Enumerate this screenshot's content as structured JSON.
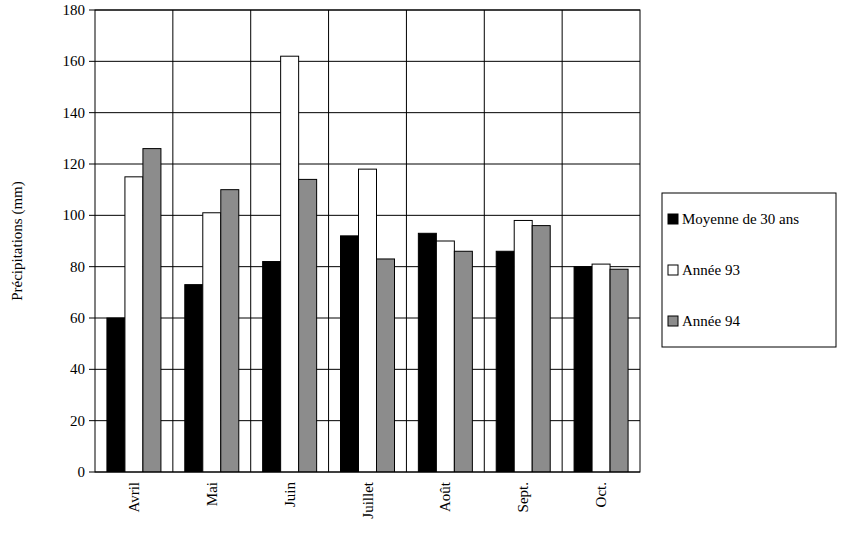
{
  "chart_data": {
    "type": "bar",
    "y_label": "Précipitations (mm)",
    "categories": [
      "Avril",
      "Mai",
      "Juin",
      "Juillet",
      "Août",
      "Sept.",
      "Oct."
    ],
    "series": [
      {
        "name": "Moyenne de 30 ans",
        "color": "#000000",
        "values": [
          60,
          73,
          82,
          92,
          93,
          86,
          80
        ]
      },
      {
        "name": "Année 93",
        "color": "#ffffff",
        "values": [
          115,
          101,
          162,
          118,
          90,
          98,
          81
        ]
      },
      {
        "name": "Année 94",
        "color": "#8c8c8c",
        "values": [
          126,
          110,
          114,
          83,
          86,
          96,
          79
        ]
      }
    ],
    "ylim": [
      0,
      180
    ],
    "yticks": [
      0,
      20,
      40,
      60,
      80,
      100,
      120,
      140,
      160,
      180
    ],
    "grid": true,
    "legend": "right"
  }
}
